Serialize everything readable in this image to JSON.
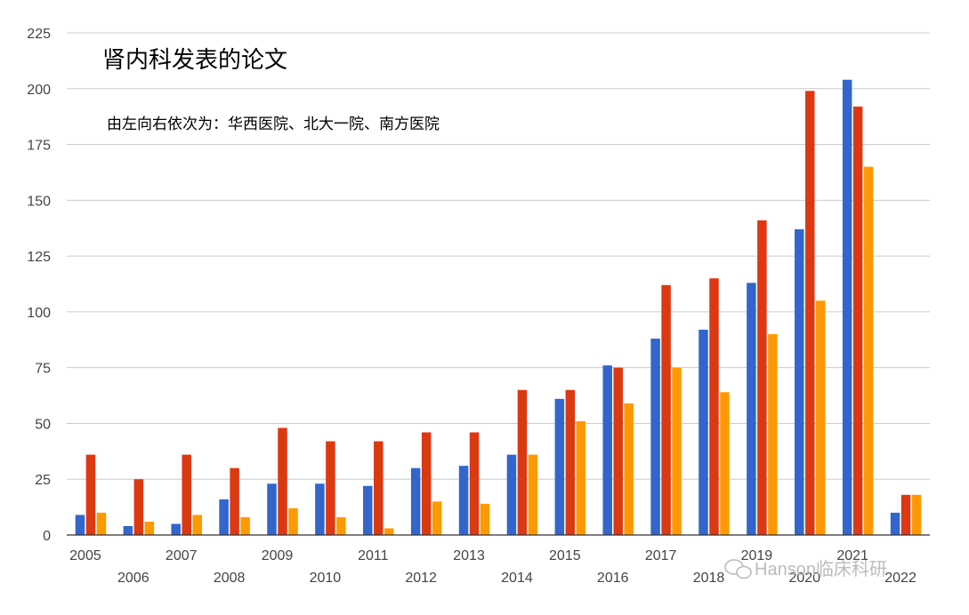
{
  "chart_data": {
    "type": "bar",
    "title": "肾内科发表的论文",
    "subtitle": "由左向右依次为：华西医院、北大一院、南方医院",
    "xlabel": "",
    "ylabel": "",
    "ylim": [
      0,
      225
    ],
    "yticks": [
      0,
      25,
      50,
      75,
      100,
      125,
      150,
      175,
      200,
      225
    ],
    "grid": true,
    "categories": [
      "2005",
      "2006",
      "2007",
      "2008",
      "2009",
      "2010",
      "2011",
      "2012",
      "2013",
      "2014",
      "2015",
      "2016",
      "2017",
      "2018",
      "2019",
      "2020",
      "2021",
      "2022"
    ],
    "series": [
      {
        "color": "#3366cc",
        "values": [
          9,
          4,
          5,
          16,
          23,
          23,
          22,
          30,
          31,
          36,
          61,
          76,
          88,
          92,
          113,
          137,
          204,
          10
        ]
      },
      {
        "color": "#dc3912",
        "values": [
          36,
          25,
          36,
          30,
          48,
          42,
          42,
          46,
          46,
          65,
          65,
          75,
          112,
          115,
          141,
          199,
          192,
          18
        ]
      },
      {
        "color": "#ff9900",
        "values": [
          10,
          6,
          9,
          8,
          12,
          8,
          3,
          15,
          14,
          36,
          51,
          59,
          75,
          64,
          90,
          105,
          165,
          18
        ]
      }
    ]
  },
  "watermark": "Hanson临床科研",
  "colors": {
    "grid": "#cccccc",
    "axis": "#333333",
    "watermark": "#bbbbbb"
  }
}
